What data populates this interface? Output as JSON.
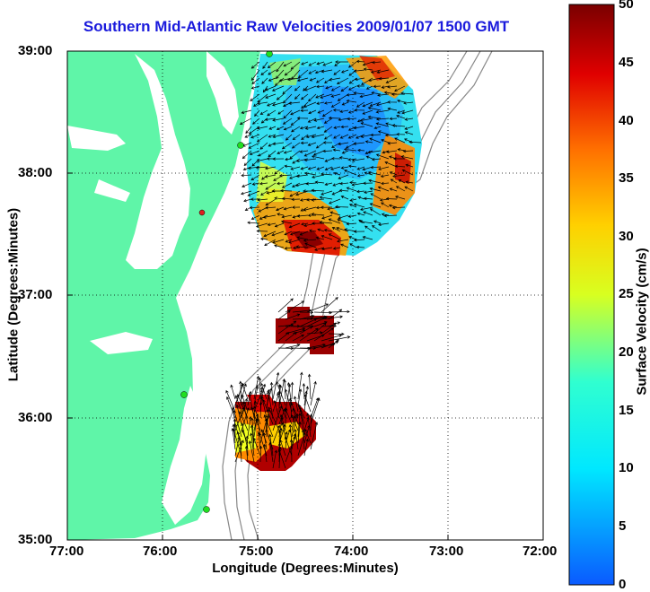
{
  "title": "Southern Mid-Atlantic Raw Velocities 2009/01/07 1500 GMT",
  "x_axis": {
    "label": "Longitude (Degrees:Minutes)",
    "ticks": [
      "77:00",
      "76:00",
      "75:00",
      "74:00",
      "73:00",
      "72:00"
    ]
  },
  "y_axis": {
    "label": "Latitude (Degrees:Minutes)",
    "ticks": [
      "39:00",
      "38:00",
      "37:00",
      "36:00",
      "35:00"
    ]
  },
  "colorbar": {
    "label": "Surface Velocity (cm/s)",
    "ticks": [
      "50",
      "45",
      "40",
      "35",
      "30",
      "25",
      "20",
      "15",
      "10",
      "5",
      "0"
    ],
    "min": 0,
    "max": 50
  },
  "map": {
    "land_color": "#5ff5a8",
    "ocean_color": "#ffffff",
    "grid": "dotted",
    "lon_range": [
      -77,
      -72
    ],
    "lat_range": [
      35,
      39
    ]
  },
  "chart_data": {
    "type": "heatmap",
    "title": "Southern Mid-Atlantic Raw Velocities 2009/01/07 1500 GMT",
    "xlabel": "Longitude (Degrees:Minutes)",
    "ylabel": "Latitude (Degrees:Minutes)",
    "xlim": [
      -77,
      -72
    ],
    "ylim": [
      35,
      39
    ],
    "colorbar_range": [
      0,
      50
    ],
    "regions": [
      {
        "lon": -74.3,
        "lat": 38.3,
        "speed_cm_s": 15
      },
      {
        "lon": -73.7,
        "lat": 38.5,
        "speed_cm_s": 8
      },
      {
        "lon": -73.5,
        "lat": 38.0,
        "speed_cm_s": 38
      },
      {
        "lon": -74.7,
        "lat": 37.5,
        "speed_cm_s": 45
      },
      {
        "lon": -74.5,
        "lat": 36.7,
        "speed_cm_s": 50
      },
      {
        "lon": -74.9,
        "lat": 36.0,
        "speed_cm_s": 45
      },
      {
        "lon": -75.1,
        "lat": 35.9,
        "speed_cm_s": 25
      }
    ]
  }
}
